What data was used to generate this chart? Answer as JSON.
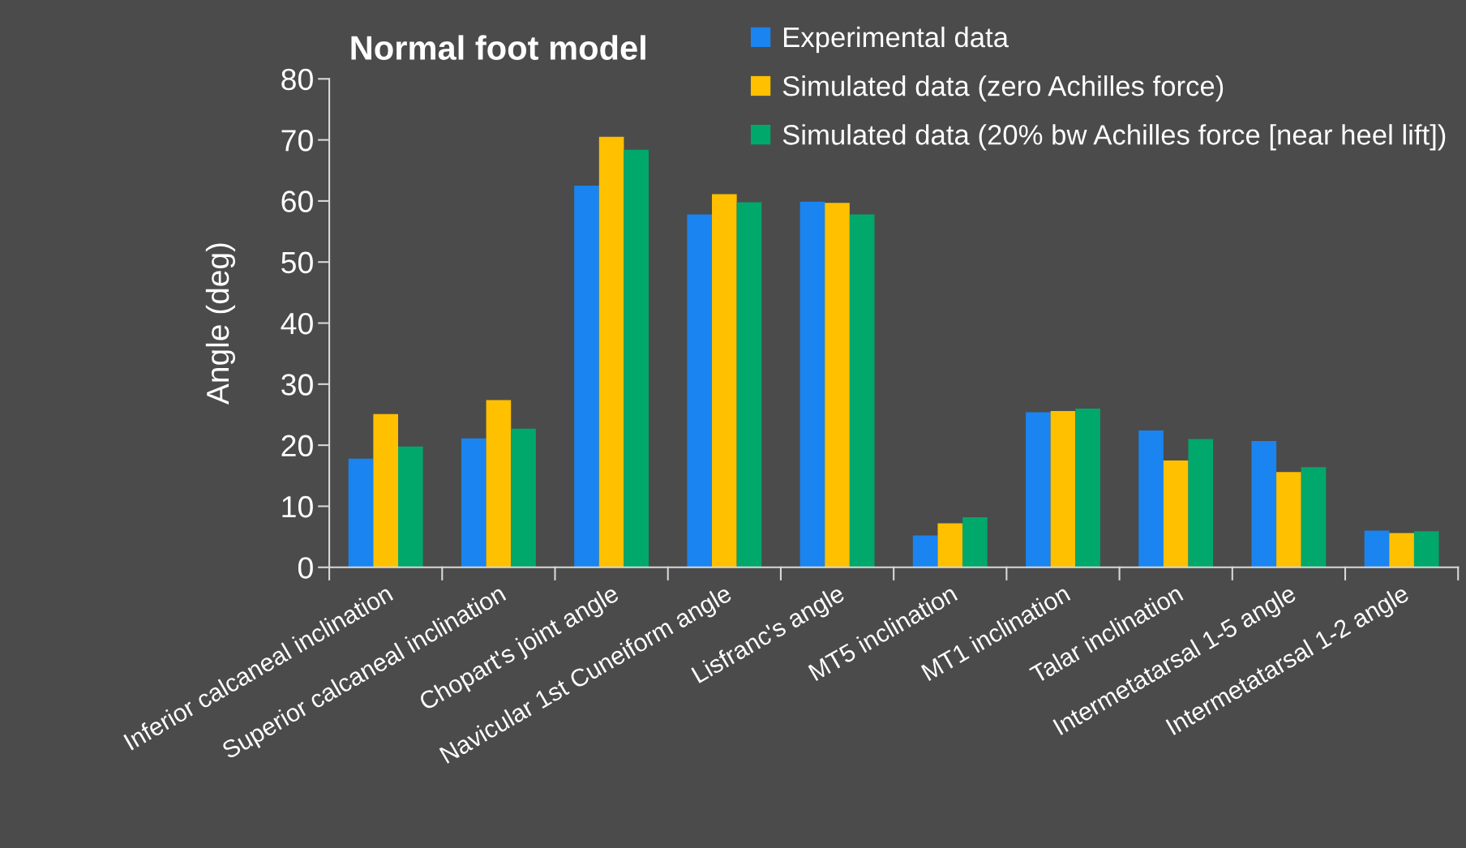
{
  "chart_data": {
    "type": "bar",
    "title": "Normal foot model",
    "ylabel": "Angle (deg)",
    "categories": [
      "Inferior calcaneal inclination",
      "Superior calcaneal inclination",
      "Chopart's joint angle",
      "Navicular 1st Cuneiform angle",
      "Lisfranc's angle",
      "MT5 inclination",
      "MT1 inclination",
      "Talar inclination",
      "Intermetatarsal 1-5 angle",
      "Intermetatarsal 1-2 angle"
    ],
    "series": [
      {
        "name": "Experimental data",
        "color": "#1a84f0",
        "values": [
          17.8,
          21.1,
          62.5,
          57.8,
          59.9,
          5.2,
          25.4,
          22.4,
          20.7,
          6.0
        ]
      },
      {
        "name": "Simulated data (zero Achilles force)",
        "color": "#ffc000",
        "values": [
          25.1,
          27.4,
          70.5,
          61.1,
          59.7,
          7.2,
          25.6,
          17.5,
          15.6,
          5.6
        ]
      },
      {
        "name": "Simulated data (20% bw Achilles force [near heel lift])",
        "color": "#00a86b",
        "values": [
          19.8,
          22.7,
          68.4,
          59.8,
          57.8,
          8.2,
          26.0,
          21.0,
          16.4,
          5.9
        ]
      }
    ],
    "ylim": [
      0,
      80
    ],
    "yticks": [
      0,
      10,
      20,
      30,
      40,
      50,
      60,
      70,
      80
    ],
    "grid": false,
    "legend": "top right"
  }
}
